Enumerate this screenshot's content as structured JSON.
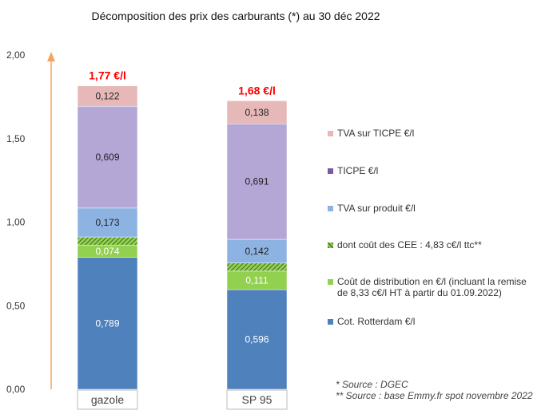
{
  "chart_data": {
    "type": "bar",
    "stacked": true,
    "title": "Décomposition des prix des carburants (*) au 30 déc 2022",
    "categories": [
      "gazole",
      "SP 95"
    ],
    "totals": [
      "1,77 €/l",
      "1,68 €/l"
    ],
    "ylim": [
      0,
      2
    ],
    "yticks": [
      "0,00",
      "0,50",
      "1,00",
      "1,50",
      "2,00"
    ],
    "grid": false,
    "legend_position": "right",
    "series": [
      {
        "name": "Cot. Rotterdam €/l",
        "values": [
          0.789,
          0.596
        ],
        "labels": [
          "0,789",
          "0,596"
        ],
        "color": "#4f81bd"
      },
      {
        "name": "Coût de distribution en €/l (incluant la remise de 8,33 c€/l HT à partir du 01.09.2022)",
        "values": [
          0.074,
          0.111
        ],
        "labels": [
          "0,074",
          "0,111"
        ],
        "color": "#92d050"
      },
      {
        "name": "dont coût des CEE : 4,83 c€/l ttc**",
        "values": [
          0.0483,
          0.0483
        ],
        "labels": [
          "",
          ""
        ],
        "color": "#4f7f2c",
        "hatched": true
      },
      {
        "name": "TVA sur produit €/l",
        "values": [
          0.173,
          0.142
        ],
        "labels": [
          "0,173",
          "0,142"
        ],
        "color": "#8db3e2"
      },
      {
        "name": "TICPE €/l",
        "values": [
          0.609,
          0.691
        ],
        "labels": [
          "0,609",
          "0,691"
        ],
        "color": "#b4a7d6"
      },
      {
        "name": "TVA sur TICPE €/l",
        "values": [
          0.122,
          0.138
        ],
        "labels": [
          "0,122",
          "0,138"
        ],
        "color": "#e6b9b8"
      }
    ],
    "legend_order": [
      "TVA sur TICPE €/l",
      "TICPE €/l",
      "TVA sur produit €/l",
      "dont coût des CEE : 4,83 c€/l ttc**",
      "Coût de distribution en €/l (incluant la remise de 8,33 c€/l HT à partir du 01.09.2022)",
      "Cot. Rotterdam €/l"
    ],
    "legend_swatch_colors": [
      "#e6b9b8",
      "#7e57a8",
      "#8db3e2",
      "#4f7f2c",
      "#92d050",
      "#4f81bd"
    ],
    "total_label_color": "#ff0000",
    "arrow_color": "#f4a460"
  },
  "sources": [
    "* Source : DGEC",
    "** Source : base Emmy.fr spot novembre 2022"
  ]
}
